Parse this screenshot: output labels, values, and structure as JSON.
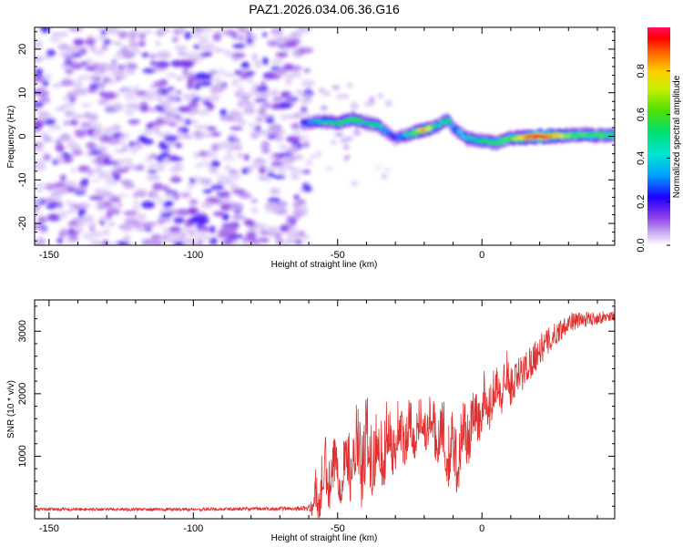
{
  "figure_title": "PAZ1.2026.034.06.36.G16",
  "chart_data": [
    {
      "type": "heatmap",
      "title": "",
      "xlabel": "Height of straight line (km)",
      "ylabel": "Frequency (Hz)",
      "xlim": [
        -155,
        46
      ],
      "ylim": [
        -25,
        25
      ],
      "x_ticks": [
        -150,
        -100,
        -50,
        0
      ],
      "y_ticks": [
        -20,
        -10,
        0,
        10,
        20
      ],
      "colorbar": {
        "label": "Normalized spectral amplitude",
        "range": [
          0.0,
          1.0
        ],
        "ticks": [
          0.0,
          0.2,
          0.4,
          0.6,
          0.8
        ],
        "tick_labels": [
          "0.0",
          "0.2",
          "0.4",
          "0.6",
          "0.8"
        ],
        "colormap": [
          "#ffffff",
          "#c8a9f2",
          "#8a3ce8",
          "#1e00ff",
          "#00c8ff",
          "#00e070",
          "#4fe000",
          "#f0f000",
          "#ff8c00",
          "#ff0000",
          "#ff1060"
        ]
      },
      "noise_region": {
        "x_range": [
          -155,
          -60
        ],
        "amplitude_range": [
          0.05,
          0.3
        ]
      },
      "signal_track": {
        "x": [
          -62,
          -55,
          -50,
          -45,
          -40,
          -36,
          -33,
          -30,
          -25,
          -20,
          -15,
          -12,
          -10,
          -5,
          0,
          5,
          10,
          20,
          30,
          46
        ],
        "frequency": [
          3,
          3.5,
          3,
          4,
          3,
          2.5,
          1,
          -0.5,
          0.5,
          1.5,
          2.5,
          4,
          2,
          -0.5,
          -1,
          -1.5,
          -0.5,
          0,
          0.2,
          0.3
        ],
        "peak_amplitude": [
          0.3,
          0.45,
          0.5,
          0.55,
          0.45,
          0.5,
          0.35,
          0.3,
          0.5,
          0.8,
          0.45,
          0.5,
          0.35,
          0.45,
          0.5,
          0.55,
          0.6,
          0.95,
          0.6,
          0.55
        ]
      }
    },
    {
      "type": "line",
      "title": "",
      "xlabel": "Height of straight line (km)",
      "ylabel": "SNR (10 * v/v)",
      "xlim": [
        -155,
        46
      ],
      "ylim": [
        0,
        3500
      ],
      "x_ticks": [
        -150,
        -100,
        -50,
        0
      ],
      "y_ticks": [
        1000,
        2000,
        3000
      ],
      "color": "#e03030",
      "series_envelope": {
        "x": [
          -155,
          -100,
          -70,
          -60,
          -57,
          -55,
          -50,
          -45,
          -40,
          -35,
          -30,
          -25,
          -20,
          -15,
          -10,
          -5,
          0,
          10,
          20,
          30,
          46
        ],
        "baseline": [
          150,
          150,
          160,
          170,
          250,
          400,
          600,
          700,
          750,
          900,
          1100,
          1200,
          1400,
          1200,
          700,
          1200,
          1600,
          2100,
          2700,
          3150,
          3250
        ],
        "spread": [
          50,
          50,
          60,
          80,
          800,
          900,
          800,
          1000,
          1400,
          1100,
          900,
          800,
          600,
          900,
          1100,
          900,
          700,
          700,
          500,
          300,
          150
        ]
      }
    }
  ]
}
